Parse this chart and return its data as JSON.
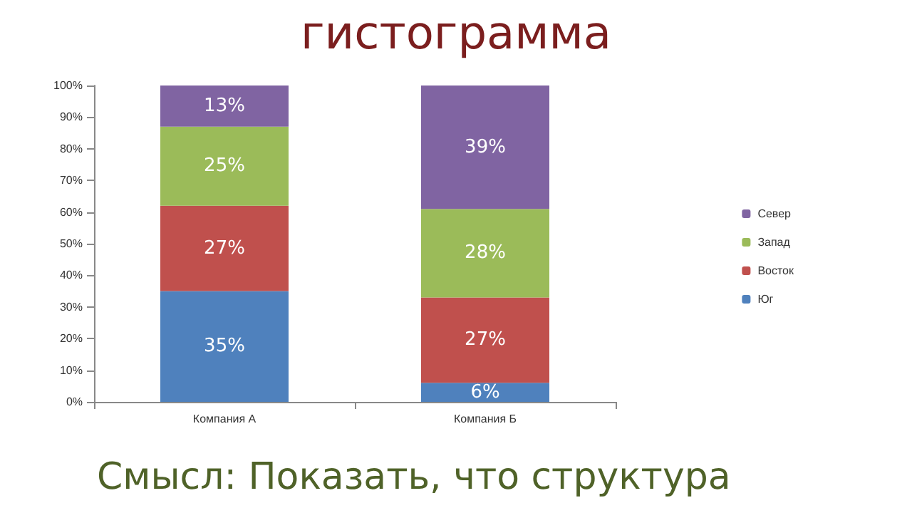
{
  "chart_data": {
    "type": "bar",
    "title": "гистограмма",
    "stacked": true,
    "categories": [
      "Компания А",
      "Компания Б"
    ],
    "series": [
      {
        "name": "Юг",
        "color": "#4f81bd",
        "values": [
          35,
          6
        ],
        "value_labels": [
          "35%",
          "6%"
        ]
      },
      {
        "name": "Восток",
        "color": "#c0504d",
        "values": [
          27,
          27
        ],
        "value_labels": [
          "27%",
          "27%"
        ]
      },
      {
        "name": "Запад",
        "color": "#9bbb59",
        "values": [
          25,
          28
        ],
        "value_labels": [
          "25%",
          "28%"
        ]
      },
      {
        "name": "Север",
        "color": "#8064a2",
        "values": [
          13,
          39
        ],
        "value_labels": [
          "13%",
          "39%"
        ]
      }
    ],
    "ylim": [
      0,
      100
    ],
    "yticks": [
      {
        "value": 0,
        "label": "0%"
      },
      {
        "value": 10,
        "label": "10%"
      },
      {
        "value": 20,
        "label": "20%"
      },
      {
        "value": 30,
        "label": "30%"
      },
      {
        "value": 40,
        "label": "40%"
      },
      {
        "value": 50,
        "label": "50%"
      },
      {
        "value": 60,
        "label": "60%"
      },
      {
        "value": 70,
        "label": "70%"
      },
      {
        "value": 80,
        "label": "80%"
      },
      {
        "value": 90,
        "label": "90%"
      },
      {
        "value": 100,
        "label": "100%"
      }
    ],
    "grid": false,
    "legend": "right",
    "annotations": [
      "Смысл: Показать, что структура"
    ]
  }
}
